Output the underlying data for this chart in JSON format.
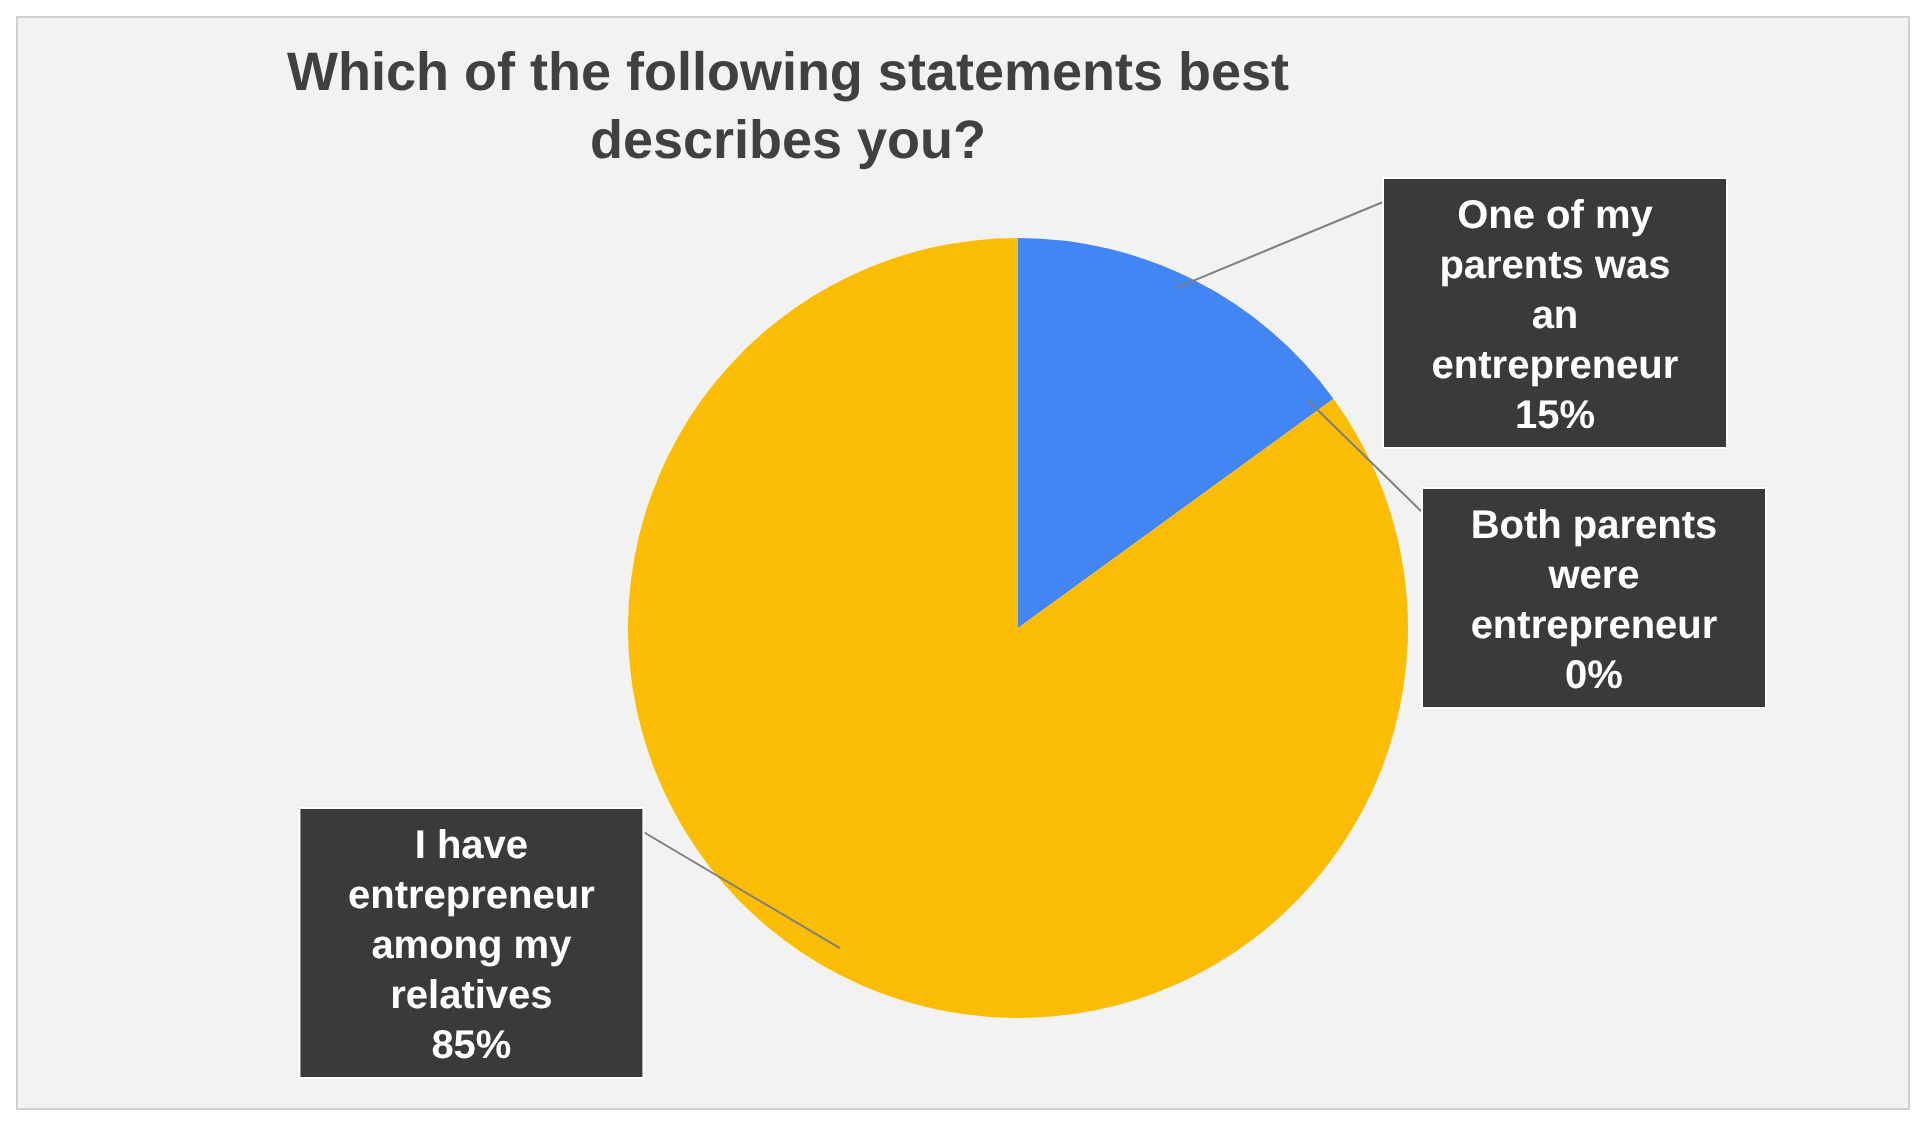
{
  "chart_data": {
    "type": "pie",
    "title": "Which of the following statements best describes you?",
    "categories": [
      "One of my parents was an entrepreneur",
      "Both parents were entrepreneur",
      "I have entrepreneur among my relatives"
    ],
    "values": [
      15,
      0,
      85
    ],
    "colors": [
      "#4285f4",
      "#a5a5a5",
      "#fbbc04"
    ],
    "value_labels": [
      "15%",
      "0%",
      "85%"
    ]
  }
}
